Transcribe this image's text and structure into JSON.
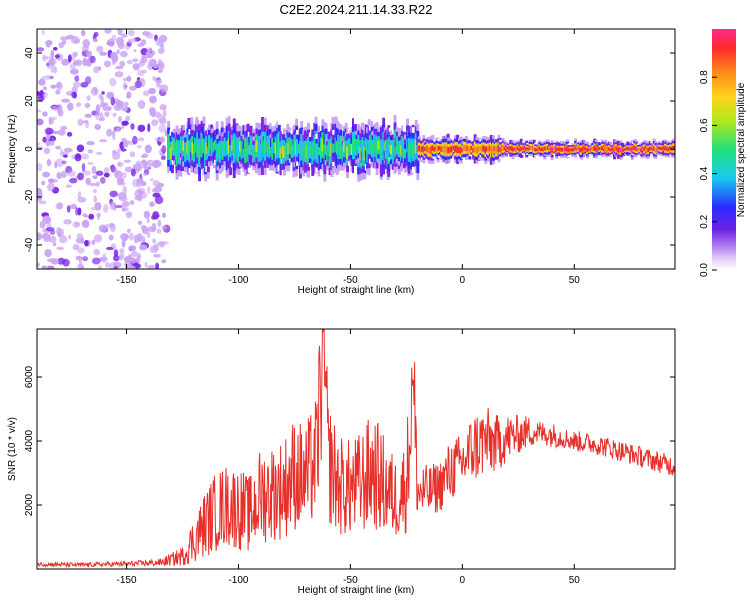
{
  "title": "C2E2.2024.211.14.33.R22",
  "colors": {
    "snr_line": "#e8302a",
    "axis": "#000000",
    "colormap": [
      "#ffffff",
      "#c9a3f5",
      "#7a22e6",
      "#2b2bff",
      "#18c9f0",
      "#22e07a",
      "#b4e81c",
      "#ffd21a",
      "#ff8a1a",
      "#ff2a2a",
      "#ff2a8c"
    ]
  },
  "chart_data": [
    {
      "type": "heatmap",
      "title": "C2E2.2024.211.14.33.R22",
      "xlabel": "Height of straight line (km)",
      "ylabel": "Frequency (Hz)",
      "xlim": [
        -190,
        95
      ],
      "ylim": [
        -50,
        50
      ],
      "xticks": [
        -150,
        -100,
        -50,
        0,
        50
      ],
      "yticks": [
        -40,
        -20,
        0,
        20,
        40
      ],
      "colorbar": {
        "label": "Normalized spectral amplitude",
        "range": [
          0.0,
          1.0
        ],
        "ticks": [
          0.0,
          0.2,
          0.4,
          0.6,
          0.8
        ]
      },
      "features": [
        {
          "x_range": [
            -190,
            -132
          ],
          "freq_range": [
            -50,
            50
          ],
          "amplitude": 0.15,
          "description_value": "noise"
        },
        {
          "x_range": [
            -132,
            -20
          ],
          "freq_center": 0,
          "freq_halfwidth": 6,
          "amplitude": 0.5
        },
        {
          "x_range": [
            -20,
            17
          ],
          "freq_center": 0,
          "freq_halfwidth": 3,
          "amplitude": 0.85
        },
        {
          "x_range": [
            17,
            95
          ],
          "freq_center": 0,
          "freq_halfwidth": 2,
          "amplitude": 0.9
        }
      ]
    },
    {
      "type": "line",
      "xlabel": "Height of straight line (km)",
      "ylabel": "SNR (10 * v/v)",
      "xlim": [
        -190,
        95
      ],
      "ylim": [
        0,
        7500
      ],
      "xticks": [
        -150,
        -100,
        -50,
        0,
        50
      ],
      "yticks": [
        2000,
        4000,
        6000
      ],
      "series": [
        {
          "x": [
            -190,
            -170,
            -150,
            -135,
            -125,
            -120,
            -115,
            -110,
            -105,
            -100,
            -95,
            -90,
            -85,
            -80,
            -75,
            -70,
            -65,
            -62,
            -60,
            -55,
            -50,
            -45,
            -40,
            -35,
            -30,
            -25,
            -22,
            -20,
            -15,
            -10,
            -5,
            0,
            5,
            10,
            15,
            20,
            25,
            30,
            35,
            40,
            45,
            50,
            60,
            70,
            80,
            90,
            95
          ],
          "y": [
            150,
            130,
            160,
            200,
            400,
            900,
            1400,
            1800,
            2000,
            1900,
            1700,
            2300,
            2400,
            2500,
            3000,
            2800,
            3500,
            7400,
            3400,
            2600,
            2500,
            2700,
            3100,
            2600,
            2200,
            2600,
            5900,
            2400,
            2400,
            2600,
            3100,
            3300,
            3800,
            4000,
            3900,
            4100,
            4200,
            4300,
            4250,
            4200,
            4100,
            4000,
            3900,
            3700,
            3500,
            3300,
            3200
          ],
          "min": [
            80,
            70,
            90,
            100,
            150,
            200,
            300,
            300,
            400,
            300,
            400,
            400,
            500,
            600,
            700,
            700,
            900,
            900,
            800,
            700,
            700,
            800,
            800,
            800,
            900,
            900,
            1000,
            1500,
            1800,
            2000,
            2200,
            2500,
            2500,
            2700,
            3000,
            3300,
            3500,
            3700,
            3800,
            3800,
            3800,
            3700,
            3600,
            3400,
            3200,
            3000,
            2900
          ],
          "max": [
            200,
            190,
            230,
            300,
            700,
            1500,
            2200,
            2600,
            2800,
            2700,
            2600,
            3200,
            3300,
            3500,
            4000,
            3800,
            4500,
            7400,
            4400,
            3600,
            3500,
            3800,
            4200,
            3700,
            3300,
            3600,
            5900,
            3300,
            3300,
            3500,
            4000,
            4200,
            4600,
            4800,
            4700,
            4700,
            4600,
            4600,
            4500,
            4500,
            4400,
            4300,
            4200,
            4000,
            3800,
            3600,
            3500
          ]
        }
      ]
    }
  ]
}
